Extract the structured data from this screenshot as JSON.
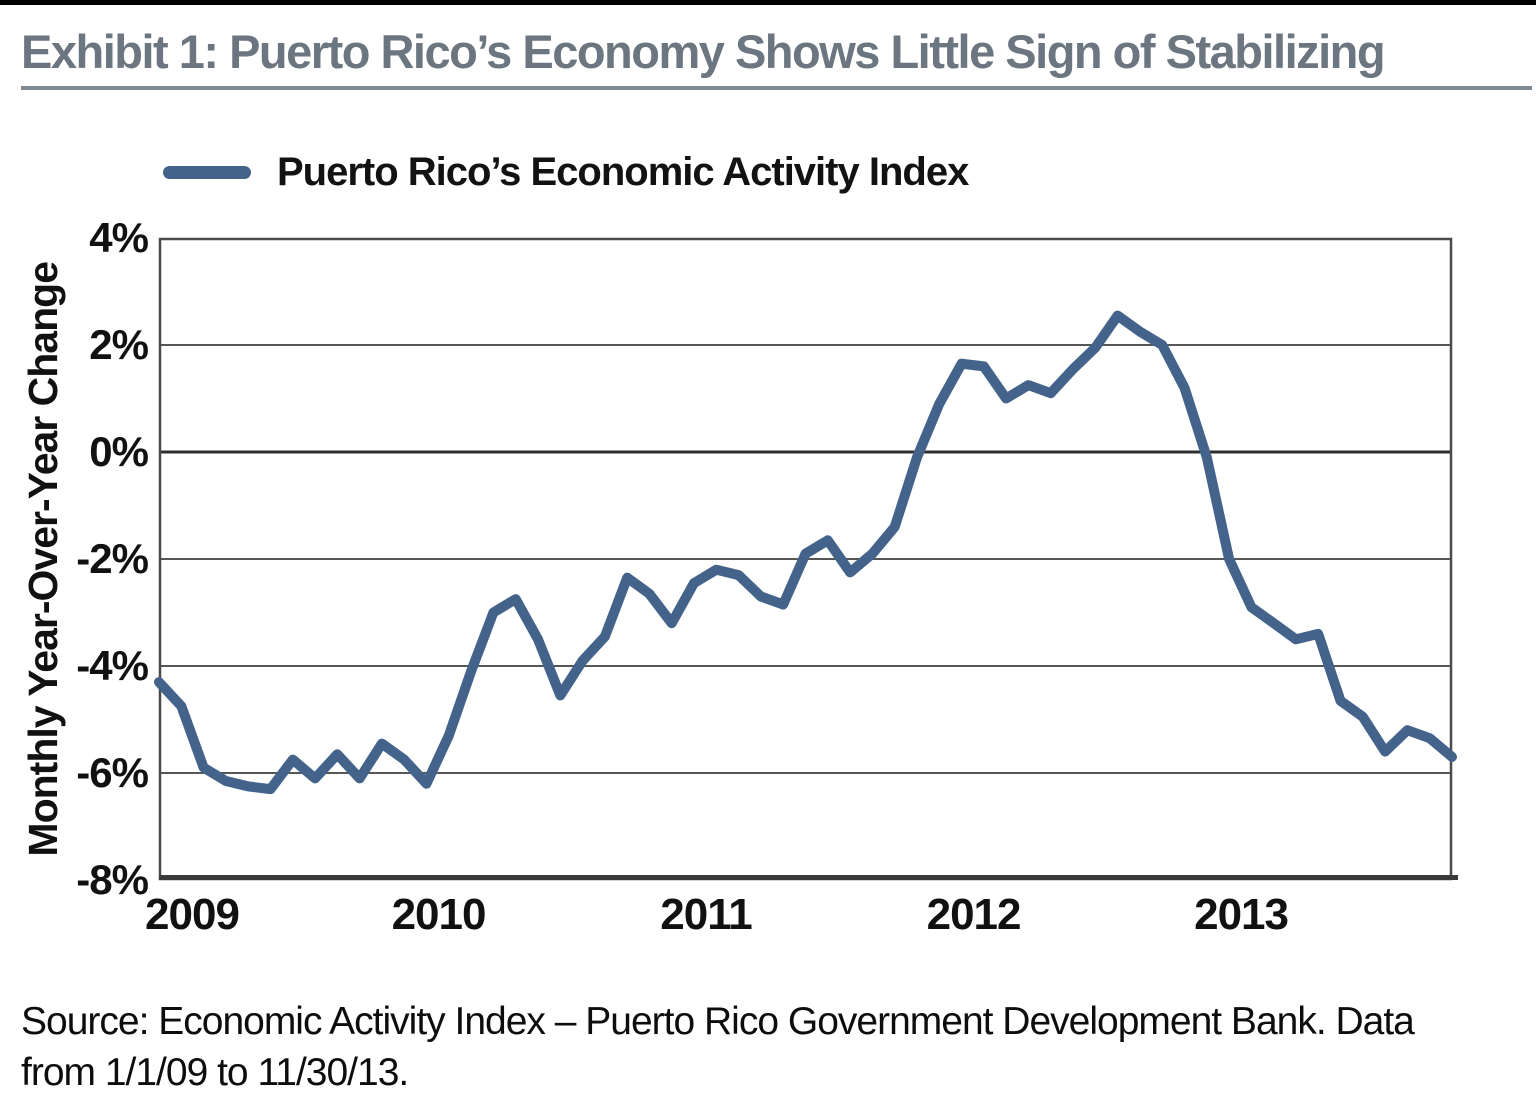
{
  "page": {
    "title": "Exhibit 1: Puerto Rico’s Economy Shows Little Sign of Stabilizing"
  },
  "footer": {
    "source_line1": "Source: Economic Activity Index – Puerto Rico Government Development Bank. Data",
    "source_line2": "from 1/1/09 to 11/30/13."
  },
  "colors": {
    "line": "#44638b",
    "title": "#6b7681",
    "grid": "#565656",
    "zero_line": "#2f2f2f",
    "axis_border": "#4a4a4a"
  },
  "chart_data": {
    "type": "line",
    "title": "",
    "xlabel": "",
    "ylabel": "Monthly Year-Over-Year Change",
    "ylim": [
      -8,
      4
    ],
    "grid": true,
    "legend_position": "top-left",
    "y_tick_values": [
      4,
      2,
      0,
      -2,
      -4,
      -6,
      -8
    ],
    "y_tick_labels": [
      "4%",
      "2%",
      "0%",
      "-2%",
      "-4%",
      "-6%",
      "-8%"
    ],
    "x_tick_labels": [
      "2009",
      "2010",
      "2011",
      "2012",
      "2013"
    ],
    "x_range": [
      "2009-01",
      "2013-11"
    ],
    "series": [
      {
        "name": "Puerto Rico’s Economic Activity Index",
        "color": "#44638b",
        "months": [
          "2009-01",
          "2009-02",
          "2009-03",
          "2009-04",
          "2009-05",
          "2009-06",
          "2009-07",
          "2009-08",
          "2009-09",
          "2009-10",
          "2009-11",
          "2009-12",
          "2010-01",
          "2010-02",
          "2010-03",
          "2010-04",
          "2010-05",
          "2010-06",
          "2010-07",
          "2010-08",
          "2010-09",
          "2010-10",
          "2010-11",
          "2010-12",
          "2011-01",
          "2011-02",
          "2011-03",
          "2011-04",
          "2011-05",
          "2011-06",
          "2011-07",
          "2011-08",
          "2011-09",
          "2011-10",
          "2011-11",
          "2011-12",
          "2012-01",
          "2012-02",
          "2012-03",
          "2012-04",
          "2012-05",
          "2012-06",
          "2012-07",
          "2012-08",
          "2012-09",
          "2012-10",
          "2012-11",
          "2012-12",
          "2013-01",
          "2013-02",
          "2013-03",
          "2013-04",
          "2013-05",
          "2013-06",
          "2013-07",
          "2013-08",
          "2013-09",
          "2013-10",
          "2013-11"
        ],
        "values": [
          -4.3,
          -4.75,
          -5.9,
          -6.15,
          -6.25,
          -6.3,
          -5.75,
          -6.1,
          -5.65,
          -6.1,
          -5.45,
          -5.75,
          -6.2,
          -5.3,
          -4.1,
          -3.0,
          -2.75,
          -3.5,
          -4.55,
          -3.9,
          -3.45,
          -2.35,
          -2.65,
          -3.2,
          -2.45,
          -2.2,
          -2.3,
          -2.7,
          -2.85,
          -1.9,
          -1.65,
          -2.25,
          -1.9,
          -1.4,
          -0.1,
          0.9,
          1.65,
          1.6,
          1.0,
          1.25,
          1.1,
          1.55,
          1.95,
          2.55,
          2.25,
          2.0,
          1.2,
          -0.1,
          -2.0,
          -2.9,
          -3.2,
          -3.5,
          -3.4,
          -4.65,
          -4.95,
          -5.6,
          -5.2,
          -5.35,
          -5.7
        ]
      }
    ]
  }
}
